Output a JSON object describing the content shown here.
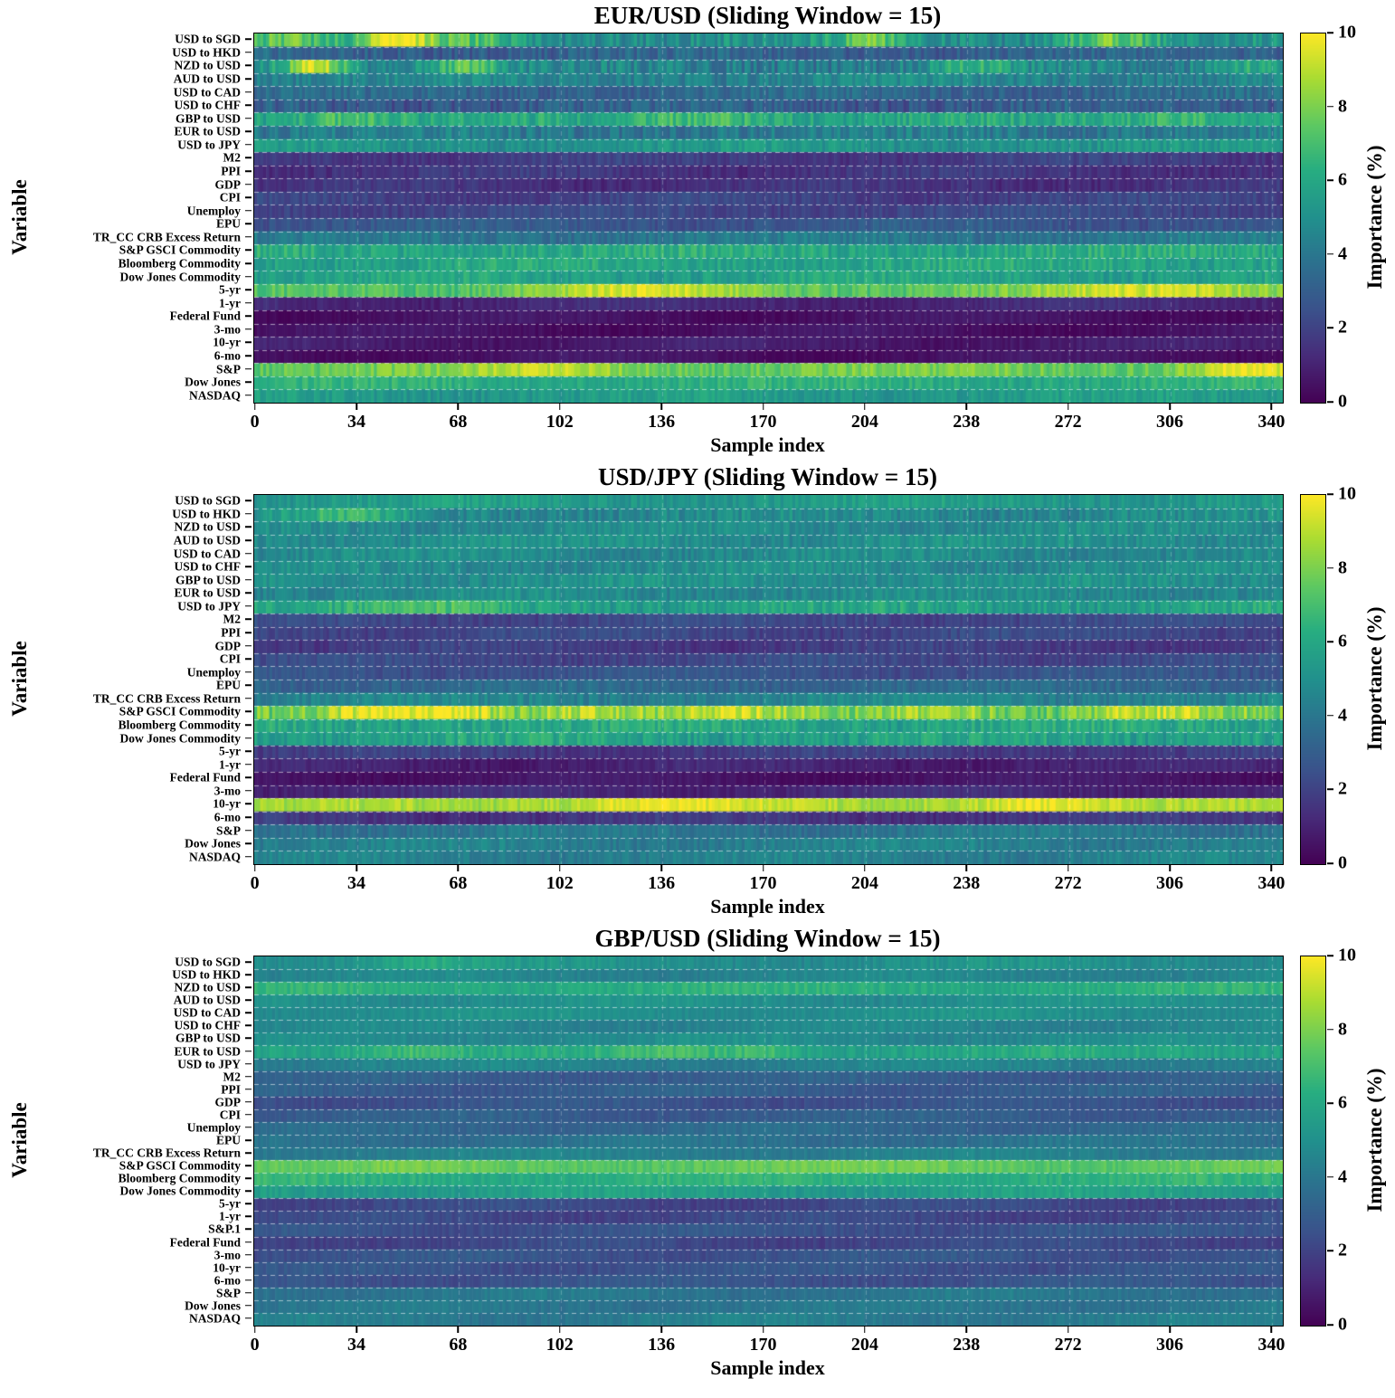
{
  "page": {
    "background": "#ffffff"
  },
  "colormap": {
    "name": "viridis",
    "stops": [
      [
        0,
        68,
        1,
        84
      ],
      [
        0.13,
        71,
        44,
        122
      ],
      [
        0.25,
        59,
        81,
        139
      ],
      [
        0.38,
        44,
        113,
        142
      ],
      [
        0.5,
        33,
        144,
        141
      ],
      [
        0.63,
        39,
        173,
        129
      ],
      [
        0.75,
        92,
        200,
        99
      ],
      [
        0.88,
        170,
        220,
        50
      ],
      [
        1,
        253,
        231,
        37
      ]
    ],
    "grid_color": "#ffffff"
  },
  "chart_data": [
    {
      "type": "heatmap",
      "title": "EUR/USD (Sliding Window = 15)",
      "xlabel": "Sample index",
      "ylabel": "Variable",
      "x_ticks": [
        0,
        34,
        68,
        102,
        136,
        170,
        204,
        238,
        272,
        306,
        340
      ],
      "n_samples": 344,
      "colorbar": {
        "label": "Importance (%)",
        "min": 0,
        "max": 10,
        "ticks": [
          0,
          2,
          4,
          6,
          8,
          10
        ]
      },
      "grid": {
        "style": "dashed",
        "color": "#ffffff"
      },
      "rows": [
        {
          "label": "USD to SGD",
          "mean": 5.0,
          "noise": 1.1,
          "hotspots": [
            {
              "center": 10,
              "width": 12,
              "peak": 7.5
            },
            {
              "center": 48,
              "width": 9,
              "peak": 10
            },
            {
              "center": 75,
              "width": 10,
              "peak": 7.2
            },
            {
              "center": 205,
              "width": 8,
              "peak": 7.5
            },
            {
              "center": 285,
              "width": 12,
              "peak": 8
            }
          ]
        },
        {
          "label": "USD to HKD",
          "mean": 3.2,
          "noise": 0.8,
          "hotspots": []
        },
        {
          "label": "NZD to USD",
          "mean": 4.4,
          "noise": 1.1,
          "hotspots": [
            {
              "center": 20,
              "width": 9,
              "peak": 9.5
            },
            {
              "center": 70,
              "width": 10,
              "peak": 7.2
            },
            {
              "center": 240,
              "width": 10,
              "peak": 6.5
            },
            {
              "center": 330,
              "width": 10,
              "peak": 6.5
            }
          ]
        },
        {
          "label": "AUD to USD",
          "mean": 4.6,
          "noise": 0.8,
          "hotspots": []
        },
        {
          "label": "USD to CAD",
          "mean": 3.4,
          "noise": 0.7,
          "hotspots": []
        },
        {
          "label": "USD to CHF",
          "mean": 3.0,
          "noise": 0.9,
          "hotspots": []
        },
        {
          "label": "GBP to USD",
          "mean": 5.8,
          "noise": 0.9,
          "hotspots": [
            {
              "center": 30,
              "width": 14,
              "peak": 7.4
            },
            {
              "center": 150,
              "width": 18,
              "peak": 7.2
            },
            {
              "center": 310,
              "width": 14,
              "peak": 7.0
            }
          ]
        },
        {
          "label": "EUR to USD",
          "mean": 4.2,
          "noise": 0.9,
          "hotspots": []
        },
        {
          "label": "USD to JPY",
          "mean": 5.2,
          "noise": 0.7,
          "hotspots": []
        },
        {
          "label": "M2",
          "mean": 1.8,
          "noise": 0.4,
          "hotspots": []
        },
        {
          "label": "PPI",
          "mean": 1.6,
          "noise": 0.4,
          "hotspots": []
        },
        {
          "label": "GDP",
          "mean": 1.5,
          "noise": 0.4,
          "hotspots": []
        },
        {
          "label": "CPI",
          "mean": 2.0,
          "noise": 0.4,
          "hotspots": []
        },
        {
          "label": "Unemploy",
          "mean": 2.2,
          "noise": 0.4,
          "hotspots": []
        },
        {
          "label": "EPU",
          "mean": 2.8,
          "noise": 0.5,
          "hotspots": []
        },
        {
          "label": "TR_CC CRB Excess Return",
          "mean": 4.0,
          "noise": 0.6,
          "hotspots": []
        },
        {
          "label": "S&P GSCI Commodity",
          "mean": 6.1,
          "noise": 0.8,
          "hotspots": []
        },
        {
          "label": "Bloomberg Commodity",
          "mean": 6.0,
          "noise": 0.7,
          "hotspots": []
        },
        {
          "label": "Dow Jones Commodity",
          "mean": 5.8,
          "noise": 0.7,
          "hotspots": []
        },
        {
          "label": "5-yr",
          "mean": 7.0,
          "noise": 0.7,
          "hotspots": [
            {
              "center": 125,
              "width": 28,
              "peak": 9.6
            },
            {
              "center": 290,
              "width": 40,
              "peak": 9.2
            }
          ]
        },
        {
          "label": "1-yr",
          "mean": 1.2,
          "noise": 0.3,
          "hotspots": []
        },
        {
          "label": "Federal Fund",
          "mean": 0.5,
          "noise": 0.2,
          "hotspots": []
        },
        {
          "label": "3-mo",
          "mean": 0.5,
          "noise": 0.2,
          "hotspots": []
        },
        {
          "label": "10-yr",
          "mean": 0.8,
          "noise": 0.25,
          "hotspots": []
        },
        {
          "label": "6-mo",
          "mean": 0.5,
          "noise": 0.2,
          "hotspots": []
        },
        {
          "label": "S&P",
          "mean": 7.8,
          "noise": 0.7,
          "hotspots": [
            {
              "center": 100,
              "width": 18,
              "peak": 9.0
            },
            {
              "center": 330,
              "width": 13,
              "peak": 10
            }
          ]
        },
        {
          "label": "Dow Jones",
          "mean": 6.3,
          "noise": 0.6,
          "hotspots": []
        },
        {
          "label": "NASDAQ",
          "mean": 5.5,
          "noise": 0.6,
          "hotspots": []
        }
      ]
    },
    {
      "type": "heatmap",
      "title": "USD/JPY (Sliding Window = 15)",
      "xlabel": "Sample index",
      "ylabel": "Variable",
      "x_ticks": [
        0,
        34,
        68,
        102,
        136,
        170,
        204,
        238,
        272,
        306,
        340
      ],
      "n_samples": 344,
      "colorbar": {
        "label": "Importance (%)",
        "min": 0,
        "max": 10,
        "ticks": [
          0,
          2,
          4,
          6,
          8,
          10
        ]
      },
      "grid": {
        "style": "dashed",
        "color": "#ffffff"
      },
      "rows": [
        {
          "label": "USD to SGD",
          "mean": 5.5,
          "noise": 0.6,
          "hotspots": []
        },
        {
          "label": "USD to HKD",
          "mean": 4.8,
          "noise": 0.8,
          "hotspots": [
            {
              "center": 30,
              "width": 15,
              "peak": 6.5
            }
          ]
        },
        {
          "label": "NZD to USD",
          "mean": 4.8,
          "noise": 0.6,
          "hotspots": []
        },
        {
          "label": "AUD to USD",
          "mean": 5.0,
          "noise": 0.6,
          "hotspots": []
        },
        {
          "label": "USD to CAD",
          "mean": 4.8,
          "noise": 0.6,
          "hotspots": []
        },
        {
          "label": "USD to CHF",
          "mean": 4.8,
          "noise": 0.6,
          "hotspots": []
        },
        {
          "label": "GBP to USD",
          "mean": 5.0,
          "noise": 0.6,
          "hotspots": []
        },
        {
          "label": "EUR to USD",
          "mean": 4.8,
          "noise": 0.6,
          "hotspots": []
        },
        {
          "label": "USD to JPY",
          "mean": 5.8,
          "noise": 0.8,
          "hotspots": [
            {
              "center": 60,
              "width": 20,
              "peak": 7.0
            }
          ]
        },
        {
          "label": "M2",
          "mean": 2.2,
          "noise": 0.4,
          "hotspots": []
        },
        {
          "label": "PPI",
          "mean": 2.2,
          "noise": 0.4,
          "hotspots": []
        },
        {
          "label": "GDP",
          "mean": 1.8,
          "noise": 0.4,
          "hotspots": []
        },
        {
          "label": "CPI",
          "mean": 2.2,
          "noise": 0.4,
          "hotspots": []
        },
        {
          "label": "Unemploy",
          "mean": 2.6,
          "noise": 0.4,
          "hotspots": []
        },
        {
          "label": "EPU",
          "mean": 3.4,
          "noise": 0.5,
          "hotspots": []
        },
        {
          "label": "TR_CC CRB Excess Return",
          "mean": 4.5,
          "noise": 0.6,
          "hotspots": []
        },
        {
          "label": "S&P GSCI Commodity",
          "mean": 7.5,
          "noise": 1.1,
          "hotspots": [
            {
              "center": 45,
              "width": 14,
              "peak": 10
            },
            {
              "center": 70,
              "width": 9,
              "peak": 9.5
            },
            {
              "center": 110,
              "width": 14,
              "peak": 9.2
            },
            {
              "center": 160,
              "width": 18,
              "peak": 9.0
            },
            {
              "center": 230,
              "width": 14,
              "peak": 9.0
            },
            {
              "center": 300,
              "width": 18,
              "peak": 9.0
            }
          ]
        },
        {
          "label": "Bloomberg Commodity",
          "mean": 6.0,
          "noise": 0.8,
          "hotspots": []
        },
        {
          "label": "Dow Jones Commodity",
          "mean": 5.8,
          "noise": 0.8,
          "hotspots": []
        },
        {
          "label": "5-yr",
          "mean": 1.8,
          "noise": 0.4,
          "hotspots": []
        },
        {
          "label": "1-yr",
          "mean": 1.0,
          "noise": 0.3,
          "hotspots": []
        },
        {
          "label": "Federal Fund",
          "mean": 0.6,
          "noise": 0.2,
          "hotspots": []
        },
        {
          "label": "3-mo",
          "mean": 1.2,
          "noise": 0.3,
          "hotspots": []
        },
        {
          "label": "10-yr",
          "mean": 8.5,
          "noise": 0.6,
          "hotspots": [
            {
              "center": 135,
              "width": 24,
              "peak": 10
            },
            {
              "center": 265,
              "width": 20,
              "peak": 10
            }
          ]
        },
        {
          "label": "6-mo",
          "mean": 1.6,
          "noise": 0.4,
          "hotspots": []
        },
        {
          "label": "S&P",
          "mean": 4.0,
          "noise": 0.5,
          "hotspots": []
        },
        {
          "label": "Dow Jones",
          "mean": 4.4,
          "noise": 0.5,
          "hotspots": []
        },
        {
          "label": "NASDAQ",
          "mean": 4.4,
          "noise": 0.5,
          "hotspots": []
        }
      ]
    },
    {
      "type": "heatmap",
      "title": "GBP/USD (Sliding Window = 15)",
      "xlabel": "Sample index",
      "ylabel": "Variable",
      "x_ticks": [
        0,
        34,
        68,
        102,
        136,
        170,
        204,
        238,
        272,
        306,
        340
      ],
      "n_samples": 344,
      "colorbar": {
        "label": "Importance (%)",
        "min": 0,
        "max": 10,
        "ticks": [
          0,
          2,
          4,
          6,
          8,
          10
        ]
      },
      "grid": {
        "style": "dashed",
        "color": "#ffffff"
      },
      "rows": [
        {
          "label": "USD to SGD",
          "mean": 5.0,
          "noise": 0.4,
          "hotspots": [
            {
              "center": 55,
              "width": 18,
              "peak": 6.2
            }
          ]
        },
        {
          "label": "USD to HKD",
          "mean": 4.6,
          "noise": 0.3,
          "hotspots": []
        },
        {
          "label": "NZD to USD",
          "mean": 6.3,
          "noise": 0.4,
          "hotspots": []
        },
        {
          "label": "AUD to USD",
          "mean": 5.0,
          "noise": 0.3,
          "hotspots": []
        },
        {
          "label": "USD to CAD",
          "mean": 5.0,
          "noise": 0.3,
          "hotspots": []
        },
        {
          "label": "USD to CHF",
          "mean": 4.6,
          "noise": 0.3,
          "hotspots": []
        },
        {
          "label": "GBP to USD",
          "mean": 4.8,
          "noise": 0.3,
          "hotspots": []
        },
        {
          "label": "EUR to USD",
          "mean": 6.0,
          "noise": 0.5,
          "hotspots": [
            {
              "center": 55,
              "width": 14,
              "peak": 7.2
            },
            {
              "center": 140,
              "width": 14,
              "peak": 7.0
            },
            {
              "center": 170,
              "width": 8,
              "peak": 7.0
            }
          ]
        },
        {
          "label": "USD to JPY",
          "mean": 4.5,
          "noise": 0.3,
          "hotspots": []
        },
        {
          "label": "M2",
          "mean": 3.0,
          "noise": 0.3,
          "hotspots": []
        },
        {
          "label": "PPI",
          "mean": 3.0,
          "noise": 0.3,
          "hotspots": []
        },
        {
          "label": "GDP",
          "mean": 2.6,
          "noise": 0.3,
          "hotspots": []
        },
        {
          "label": "CPI",
          "mean": 3.0,
          "noise": 0.3,
          "hotspots": []
        },
        {
          "label": "Unemploy",
          "mean": 3.4,
          "noise": 0.3,
          "hotspots": []
        },
        {
          "label": "EPU",
          "mean": 3.8,
          "noise": 0.3,
          "hotspots": []
        },
        {
          "label": "TR_CC CRB Excess Return",
          "mean": 4.4,
          "noise": 0.3,
          "hotspots": []
        },
        {
          "label": "S&P GSCI Commodity",
          "mean": 7.6,
          "noise": 0.4,
          "hotspots": []
        },
        {
          "label": "Bloomberg Commodity",
          "mean": 6.4,
          "noise": 0.4,
          "hotspots": []
        },
        {
          "label": "Dow Jones Commodity",
          "mean": 5.6,
          "noise": 0.4,
          "hotspots": []
        },
        {
          "label": "5-yr",
          "mean": 2.2,
          "noise": 0.3,
          "hotspots": []
        },
        {
          "label": "1-yr",
          "mean": 2.2,
          "noise": 0.3,
          "hotspots": []
        },
        {
          "label": "S&P.1",
          "mean": 2.6,
          "noise": 0.3,
          "hotspots": []
        },
        {
          "label": "Federal Fund",
          "mean": 2.2,
          "noise": 0.3,
          "hotspots": []
        },
        {
          "label": "3-mo",
          "mean": 2.6,
          "noise": 0.3,
          "hotspots": []
        },
        {
          "label": "10-yr",
          "mean": 2.6,
          "noise": 0.3,
          "hotspots": []
        },
        {
          "label": "6-mo",
          "mean": 2.6,
          "noise": 0.3,
          "hotspots": []
        },
        {
          "label": "S&P",
          "mean": 4.0,
          "noise": 0.3,
          "hotspots": []
        },
        {
          "label": "Dow Jones",
          "mean": 4.0,
          "noise": 0.3,
          "hotspots": []
        },
        {
          "label": "NASDAQ",
          "mean": 4.2,
          "noise": 0.3,
          "hotspots": []
        }
      ]
    }
  ]
}
